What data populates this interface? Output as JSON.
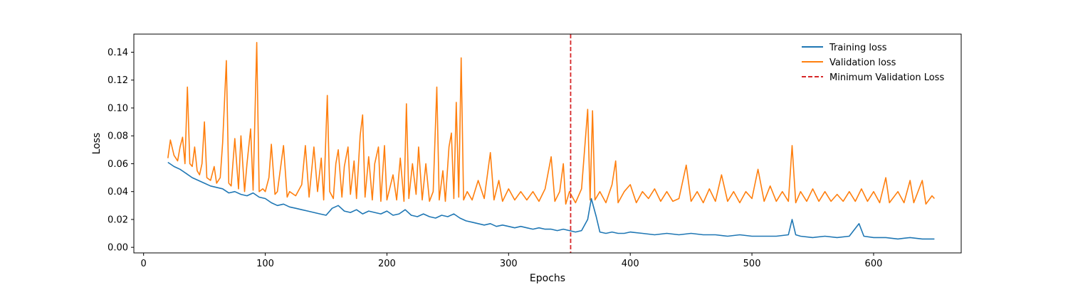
{
  "chart_data": {
    "type": "line",
    "title": "",
    "xlabel": "Epochs",
    "ylabel": "Loss",
    "xlim": [
      -8,
      672
    ],
    "ylim": [
      -0.004,
      0.153
    ],
    "xticks": [
      0,
      100,
      200,
      300,
      400,
      500,
      600
    ],
    "xtick_labels": [
      "0",
      "100",
      "200",
      "300",
      "400",
      "500",
      "600"
    ],
    "yticks": [
      0.0,
      0.02,
      0.04,
      0.06,
      0.08,
      0.1,
      0.12,
      0.14
    ],
    "ytick_labels": [
      "0.00",
      "0.02",
      "0.04",
      "0.06",
      "0.08",
      "0.10",
      "0.12",
      "0.14"
    ],
    "grid": false,
    "legend_position": "top-right",
    "vline": {
      "name": "Minimum Validation Loss",
      "x": 351,
      "color": "#d62728",
      "style": "dashed"
    },
    "series": [
      {
        "name": "Training loss",
        "color": "#1f77b4",
        "points": [
          [
            20,
            0.061
          ],
          [
            25,
            0.058
          ],
          [
            30,
            0.056
          ],
          [
            35,
            0.053
          ],
          [
            40,
            0.05
          ],
          [
            45,
            0.048
          ],
          [
            50,
            0.046
          ],
          [
            55,
            0.044
          ],
          [
            60,
            0.043
          ],
          [
            65,
            0.042
          ],
          [
            70,
            0.039
          ],
          [
            75,
            0.04
          ],
          [
            80,
            0.038
          ],
          [
            85,
            0.037
          ],
          [
            90,
            0.039
          ],
          [
            95,
            0.036
          ],
          [
            100,
            0.035
          ],
          [
            105,
            0.032
          ],
          [
            110,
            0.03
          ],
          [
            115,
            0.031
          ],
          [
            120,
            0.029
          ],
          [
            125,
            0.028
          ],
          [
            130,
            0.027
          ],
          [
            135,
            0.026
          ],
          [
            140,
            0.025
          ],
          [
            145,
            0.024
          ],
          [
            150,
            0.023
          ],
          [
            155,
            0.028
          ],
          [
            160,
            0.03
          ],
          [
            165,
            0.026
          ],
          [
            170,
            0.025
          ],
          [
            175,
            0.027
          ],
          [
            180,
            0.024
          ],
          [
            185,
            0.026
          ],
          [
            190,
            0.025
          ],
          [
            195,
            0.024
          ],
          [
            200,
            0.026
          ],
          [
            205,
            0.023
          ],
          [
            210,
            0.024
          ],
          [
            215,
            0.027
          ],
          [
            220,
            0.023
          ],
          [
            225,
            0.022
          ],
          [
            230,
            0.024
          ],
          [
            235,
            0.022
          ],
          [
            240,
            0.021
          ],
          [
            245,
            0.023
          ],
          [
            250,
            0.022
          ],
          [
            255,
            0.024
          ],
          [
            260,
            0.021
          ],
          [
            265,
            0.019
          ],
          [
            270,
            0.018
          ],
          [
            275,
            0.017
          ],
          [
            280,
            0.016
          ],
          [
            285,
            0.017
          ],
          [
            290,
            0.015
          ],
          [
            295,
            0.016
          ],
          [
            300,
            0.015
          ],
          [
            305,
            0.014
          ],
          [
            310,
            0.015
          ],
          [
            315,
            0.014
          ],
          [
            320,
            0.013
          ],
          [
            325,
            0.014
          ],
          [
            330,
            0.013
          ],
          [
            335,
            0.013
          ],
          [
            340,
            0.012
          ],
          [
            345,
            0.013
          ],
          [
            350,
            0.012
          ],
          [
            355,
            0.011
          ],
          [
            360,
            0.012
          ],
          [
            365,
            0.02
          ],
          [
            368,
            0.035
          ],
          [
            372,
            0.022
          ],
          [
            375,
            0.011
          ],
          [
            380,
            0.01
          ],
          [
            385,
            0.011
          ],
          [
            390,
            0.01
          ],
          [
            395,
            0.01
          ],
          [
            400,
            0.011
          ],
          [
            410,
            0.01
          ],
          [
            420,
            0.009
          ],
          [
            430,
            0.01
          ],
          [
            440,
            0.009
          ],
          [
            450,
            0.01
          ],
          [
            460,
            0.009
          ],
          [
            470,
            0.009
          ],
          [
            480,
            0.008
          ],
          [
            490,
            0.009
          ],
          [
            500,
            0.008
          ],
          [
            510,
            0.008
          ],
          [
            520,
            0.008
          ],
          [
            530,
            0.009
          ],
          [
            533,
            0.02
          ],
          [
            536,
            0.009
          ],
          [
            540,
            0.008
          ],
          [
            550,
            0.007
          ],
          [
            560,
            0.008
          ],
          [
            570,
            0.007
          ],
          [
            580,
            0.008
          ],
          [
            588,
            0.017
          ],
          [
            592,
            0.008
          ],
          [
            600,
            0.007
          ],
          [
            610,
            0.007
          ],
          [
            620,
            0.006
          ],
          [
            630,
            0.007
          ],
          [
            640,
            0.006
          ],
          [
            650,
            0.006
          ]
        ]
      },
      {
        "name": "Validation loss",
        "color": "#ff7f0e",
        "points": [
          [
            20,
            0.064
          ],
          [
            22,
            0.077
          ],
          [
            25,
            0.066
          ],
          [
            28,
            0.062
          ],
          [
            30,
            0.072
          ],
          [
            32,
            0.079
          ],
          [
            34,
            0.06
          ],
          [
            36,
            0.115
          ],
          [
            38,
            0.06
          ],
          [
            40,
            0.058
          ],
          [
            42,
            0.072
          ],
          [
            44,
            0.055
          ],
          [
            46,
            0.052
          ],
          [
            48,
            0.06
          ],
          [
            50,
            0.09
          ],
          [
            52,
            0.05
          ],
          [
            55,
            0.048
          ],
          [
            58,
            0.058
          ],
          [
            60,
            0.046
          ],
          [
            63,
            0.05
          ],
          [
            65,
            0.075
          ],
          [
            68,
            0.134
          ],
          [
            70,
            0.046
          ],
          [
            72,
            0.044
          ],
          [
            75,
            0.078
          ],
          [
            78,
            0.042
          ],
          [
            80,
            0.08
          ],
          [
            83,
            0.04
          ],
          [
            85,
            0.06
          ],
          [
            88,
            0.085
          ],
          [
            90,
            0.041
          ],
          [
            93,
            0.147
          ],
          [
            95,
            0.04
          ],
          [
            98,
            0.042
          ],
          [
            100,
            0.04
          ],
          [
            103,
            0.05
          ],
          [
            105,
            0.074
          ],
          [
            108,
            0.038
          ],
          [
            110,
            0.04
          ],
          [
            113,
            0.06
          ],
          [
            115,
            0.073
          ],
          [
            118,
            0.036
          ],
          [
            120,
            0.04
          ],
          [
            125,
            0.037
          ],
          [
            130,
            0.045
          ],
          [
            133,
            0.073
          ],
          [
            136,
            0.036
          ],
          [
            140,
            0.072
          ],
          [
            143,
            0.04
          ],
          [
            146,
            0.064
          ],
          [
            148,
            0.034
          ],
          [
            151,
            0.109
          ],
          [
            153,
            0.04
          ],
          [
            156,
            0.035
          ],
          [
            158,
            0.06
          ],
          [
            160,
            0.07
          ],
          [
            163,
            0.036
          ],
          [
            165,
            0.058
          ],
          [
            168,
            0.072
          ],
          [
            170,
            0.038
          ],
          [
            173,
            0.062
          ],
          [
            175,
            0.035
          ],
          [
            178,
            0.08
          ],
          [
            180,
            0.095
          ],
          [
            182,
            0.036
          ],
          [
            185,
            0.065
          ],
          [
            188,
            0.034
          ],
          [
            190,
            0.06
          ],
          [
            193,
            0.072
          ],
          [
            195,
            0.033
          ],
          [
            198,
            0.073
          ],
          [
            200,
            0.034
          ],
          [
            205,
            0.052
          ],
          [
            208,
            0.034
          ],
          [
            211,
            0.064
          ],
          [
            214,
            0.033
          ],
          [
            216,
            0.103
          ],
          [
            218,
            0.035
          ],
          [
            221,
            0.06
          ],
          [
            224,
            0.038
          ],
          [
            226,
            0.072
          ],
          [
            229,
            0.034
          ],
          [
            232,
            0.06
          ],
          [
            235,
            0.033
          ],
          [
            238,
            0.04
          ],
          [
            241,
            0.115
          ],
          [
            243,
            0.034
          ],
          [
            246,
            0.055
          ],
          [
            248,
            0.033
          ],
          [
            251,
            0.072
          ],
          [
            253,
            0.082
          ],
          [
            255,
            0.035
          ],
          [
            257,
            0.104
          ],
          [
            259,
            0.036
          ],
          [
            261,
            0.136
          ],
          [
            263,
            0.034
          ],
          [
            266,
            0.04
          ],
          [
            270,
            0.034
          ],
          [
            275,
            0.048
          ],
          [
            280,
            0.035
          ],
          [
            285,
            0.068
          ],
          [
            288,
            0.034
          ],
          [
            292,
            0.048
          ],
          [
            295,
            0.033
          ],
          [
            300,
            0.042
          ],
          [
            305,
            0.034
          ],
          [
            310,
            0.04
          ],
          [
            315,
            0.034
          ],
          [
            320,
            0.04
          ],
          [
            325,
            0.033
          ],
          [
            330,
            0.042
          ],
          [
            335,
            0.065
          ],
          [
            338,
            0.033
          ],
          [
            342,
            0.04
          ],
          [
            345,
            0.06
          ],
          [
            347,
            0.031
          ],
          [
            350,
            0.04
          ],
          [
            355,
            0.032
          ],
          [
            360,
            0.042
          ],
          [
            365,
            0.099
          ],
          [
            367,
            0.034
          ],
          [
            369,
            0.098
          ],
          [
            371,
            0.034
          ],
          [
            375,
            0.04
          ],
          [
            380,
            0.032
          ],
          [
            385,
            0.045
          ],
          [
            388,
            0.062
          ],
          [
            390,
            0.032
          ],
          [
            395,
            0.04
          ],
          [
            400,
            0.045
          ],
          [
            405,
            0.032
          ],
          [
            410,
            0.04
          ],
          [
            415,
            0.035
          ],
          [
            420,
            0.042
          ],
          [
            425,
            0.033
          ],
          [
            430,
            0.04
          ],
          [
            435,
            0.033
          ],
          [
            440,
            0.035
          ],
          [
            446,
            0.059
          ],
          [
            450,
            0.033
          ],
          [
            455,
            0.04
          ],
          [
            460,
            0.032
          ],
          [
            465,
            0.042
          ],
          [
            470,
            0.033
          ],
          [
            475,
            0.052
          ],
          [
            480,
            0.033
          ],
          [
            485,
            0.04
          ],
          [
            490,
            0.032
          ],
          [
            495,
            0.04
          ],
          [
            500,
            0.035
          ],
          [
            505,
            0.056
          ],
          [
            510,
            0.033
          ],
          [
            515,
            0.044
          ],
          [
            520,
            0.033
          ],
          [
            525,
            0.04
          ],
          [
            530,
            0.033
          ],
          [
            533,
            0.073
          ],
          [
            536,
            0.032
          ],
          [
            540,
            0.04
          ],
          [
            545,
            0.033
          ],
          [
            550,
            0.042
          ],
          [
            555,
            0.033
          ],
          [
            560,
            0.04
          ],
          [
            565,
            0.033
          ],
          [
            570,
            0.038
          ],
          [
            575,
            0.033
          ],
          [
            580,
            0.04
          ],
          [
            585,
            0.033
          ],
          [
            590,
            0.042
          ],
          [
            595,
            0.033
          ],
          [
            600,
            0.04
          ],
          [
            605,
            0.032
          ],
          [
            610,
            0.05
          ],
          [
            613,
            0.032
          ],
          [
            620,
            0.04
          ],
          [
            625,
            0.032
          ],
          [
            630,
            0.048
          ],
          [
            633,
            0.032
          ],
          [
            640,
            0.048
          ],
          [
            643,
            0.031
          ],
          [
            648,
            0.037
          ],
          [
            650,
            0.035
          ]
        ]
      }
    ]
  }
}
